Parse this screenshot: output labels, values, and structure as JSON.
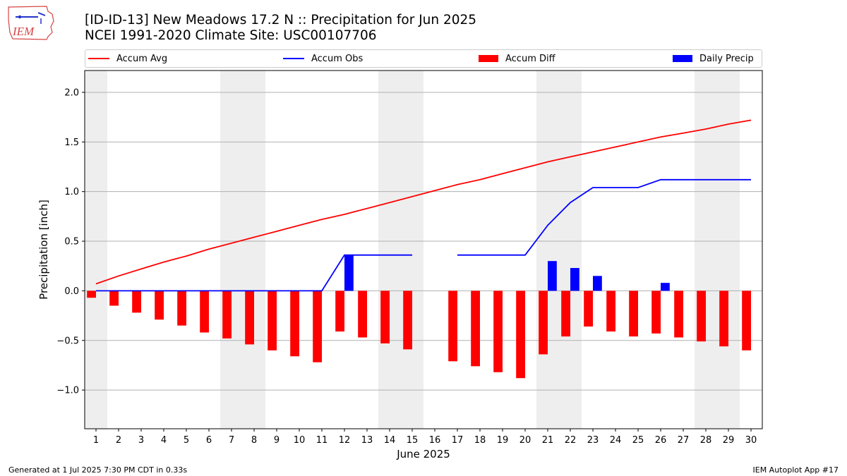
{
  "header": {
    "title_line1": "[ID-ID-13] New Meadows 17.2 N :: Precipitation for Jun 2025",
    "title_line2": "NCEI 1991-2020 Climate Site: USC00107706",
    "logo_text": "IEM"
  },
  "legend": {
    "accum_avg": "Accum Avg",
    "accum_obs": "Accum Obs",
    "accum_diff": "Accum Diff",
    "daily_precip": "Daily Precip"
  },
  "colors": {
    "accum_avg": "#ff0000",
    "accum_obs": "#0000ff",
    "accum_diff": "#ff0000",
    "daily_precip": "#0000ff",
    "weekend_shade": "#eeeeee",
    "grid": "#b0b0b0"
  },
  "footer": {
    "left": "Generated at 1 Jul 2025 7:30 PM CDT in 0.33s",
    "right": "IEM Autoplot App #17"
  },
  "chart_data": {
    "type": "bar",
    "title": "[ID-ID-13] New Meadows 17.2 N :: Precipitation for Jun 2025",
    "subtitle": "NCEI 1991-2020 Climate Site: USC00107706",
    "xlabel": "June 2025",
    "ylabel": "Precipitation [inch]",
    "ylim": [
      -1.39,
      2.22
    ],
    "yticks": [
      -1.0,
      -0.5,
      0.0,
      0.5,
      1.0,
      1.5,
      2.0
    ],
    "ytick_labels": [
      "−1.0",
      "−0.5",
      "0.0",
      "0.5",
      "1.0",
      "1.5",
      "2.0"
    ],
    "xlim": [
      0.5,
      30.5
    ],
    "grid": "horizontal",
    "legend_position": "top",
    "categories": [
      "1",
      "2",
      "3",
      "4",
      "5",
      "6",
      "7",
      "8",
      "9",
      "10",
      "11",
      "12",
      "13",
      "14",
      "15",
      "16",
      "17",
      "18",
      "19",
      "20",
      "21",
      "22",
      "23",
      "24",
      "25",
      "26",
      "27",
      "28",
      "29",
      "30"
    ],
    "weekend_days": [
      1,
      7,
      8,
      14,
      15,
      21,
      22,
      28,
      29
    ],
    "series": [
      {
        "name": "Accum Avg",
        "type": "line",
        "values": [
          0.07,
          0.15,
          0.22,
          0.29,
          0.35,
          0.42,
          0.48,
          0.54,
          0.6,
          0.66,
          0.72,
          0.77,
          0.83,
          0.89,
          0.95,
          1.01,
          1.07,
          1.12,
          1.18,
          1.24,
          1.3,
          1.35,
          1.4,
          1.45,
          1.5,
          1.55,
          1.59,
          1.63,
          1.68,
          1.72
        ]
      },
      {
        "name": "Accum Obs",
        "type": "line",
        "values": [
          0.0,
          0.0,
          0.0,
          0.0,
          0.0,
          0.0,
          0.0,
          0.0,
          0.0,
          0.0,
          0.0,
          0.36,
          0.36,
          0.36,
          0.36,
          null,
          0.36,
          0.36,
          0.36,
          0.36,
          0.66,
          0.89,
          1.04,
          1.04,
          1.04,
          1.12,
          1.12,
          1.12,
          1.12,
          1.12
        ]
      },
      {
        "name": "Accum Diff",
        "type": "bar",
        "values": [
          -0.07,
          -0.15,
          -0.22,
          -0.29,
          -0.35,
          -0.42,
          -0.48,
          -0.54,
          -0.6,
          -0.66,
          -0.72,
          -0.41,
          -0.47,
          -0.53,
          -0.59,
          null,
          -0.71,
          -0.76,
          -0.82,
          -0.88,
          -0.64,
          -0.46,
          -0.36,
          -0.41,
          -0.46,
          -0.43,
          -0.47,
          -0.51,
          -0.56,
          -0.6
        ]
      },
      {
        "name": "Daily Precip",
        "type": "bar",
        "values": [
          0,
          0,
          0,
          0,
          0,
          0,
          0,
          0,
          0,
          0,
          0,
          0.36,
          0,
          0,
          0,
          null,
          0,
          0,
          0,
          0,
          0.3,
          0.23,
          0.15,
          0,
          0,
          0.08,
          0,
          0,
          0,
          0
        ]
      }
    ]
  }
}
